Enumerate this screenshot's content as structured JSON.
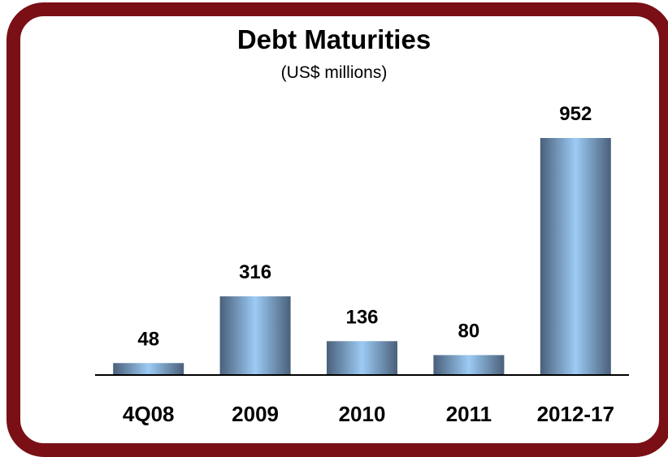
{
  "chart_data": {
    "type": "bar",
    "title": "Debt Maturities",
    "subtitle": "(US$ millions)",
    "categories": [
      "4Q08",
      "2009",
      "2010",
      "2011",
      "2012-17"
    ],
    "values": [
      48,
      316,
      136,
      80,
      952
    ],
    "data_labels": [
      "48",
      "316",
      "136",
      "80",
      "952"
    ],
    "xlabel": "",
    "ylabel": "",
    "ylim": [
      0,
      1000
    ],
    "grid": false,
    "legend": "none"
  },
  "colors": {
    "frame": "#7a0f16",
    "bar_edge": "#4a607a",
    "bar_center": "#9ccbf5",
    "axis": "#000000"
  }
}
